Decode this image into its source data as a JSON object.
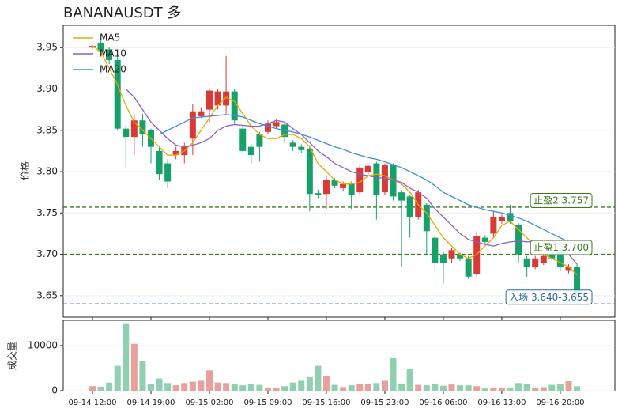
{
  "chart_data": [
    {
      "type": "candlestick",
      "title": "BANANAUSDT  多",
      "ylabel": "价格",
      "ylim": [
        3.624,
        3.977
      ],
      "yticks": [
        3.65,
        {
          "value": 3.7,
          "label": "3.70"
        },
        3.75,
        {
          "value": 3.8,
          "label": "3.80"
        },
        3.85,
        {
          "value": 3.9,
          "label": "3.90"
        },
        3.95
      ],
      "grid": true,
      "legend": "upper left",
      "up_color": "#d93a35",
      "down_color": "#16a06a",
      "open": [
        3.95,
        3.955,
        3.948,
        3.935,
        3.852,
        3.842,
        3.862,
        3.85,
        3.825,
        3.81,
        3.82,
        3.82,
        3.84,
        3.867,
        3.875,
        3.88,
        3.88,
        3.897,
        3.852,
        3.83,
        3.845,
        3.848,
        3.855,
        3.857,
        3.835,
        3.83,
        3.828,
        3.774,
        3.773,
        3.79,
        3.78,
        3.785,
        3.775,
        3.8,
        3.81,
        3.775,
        3.808,
        3.775,
        3.77,
        3.745,
        3.76,
        3.72,
        3.7,
        3.695,
        3.7,
        3.695,
        3.676,
        3.72,
        3.725,
        3.74,
        3.75,
        3.735,
        3.695,
        3.685,
        3.69,
        3.7,
        3.705,
        3.68,
        3.685
      ],
      "high": [
        3.953,
        3.958,
        3.95,
        3.94,
        3.856,
        3.868,
        3.87,
        3.852,
        3.83,
        3.815,
        3.83,
        3.835,
        3.882,
        3.878,
        3.9,
        3.9,
        3.94,
        3.9,
        3.856,
        3.833,
        3.848,
        3.862,
        3.863,
        3.86,
        3.838,
        3.833,
        3.832,
        3.778,
        3.795,
        3.792,
        3.788,
        3.788,
        3.808,
        3.81,
        3.812,
        3.81,
        3.81,
        3.778,
        3.772,
        3.778,
        3.762,
        3.722,
        3.703,
        3.708,
        3.702,
        3.698,
        3.728,
        3.723,
        3.752,
        3.748,
        3.76,
        3.738,
        3.698,
        3.698,
        3.7,
        3.703,
        3.708,
        3.688,
        3.688
      ],
      "low": [
        3.949,
        3.94,
        3.93,
        3.85,
        3.805,
        3.82,
        3.83,
        3.81,
        3.79,
        3.78,
        3.815,
        3.81,
        3.82,
        3.865,
        3.86,
        3.875,
        3.87,
        3.858,
        3.822,
        3.81,
        3.812,
        3.845,
        3.852,
        3.835,
        3.825,
        3.822,
        3.752,
        3.768,
        3.755,
        3.78,
        3.776,
        3.755,
        3.772,
        3.797,
        3.742,
        3.772,
        3.765,
        3.685,
        3.72,
        3.742,
        3.7,
        3.678,
        3.665,
        3.69,
        3.692,
        3.67,
        3.673,
        3.712,
        3.72,
        3.737,
        3.737,
        3.69,
        3.673,
        3.682,
        3.687,
        3.692,
        3.68,
        3.677,
        3.64
      ],
      "close": [
        3.952,
        3.945,
        3.935,
        3.852,
        3.842,
        3.862,
        3.845,
        3.83,
        3.797,
        3.788,
        3.825,
        3.83,
        3.873,
        3.873,
        3.898,
        3.897,
        3.897,
        3.862,
        3.825,
        3.82,
        3.83,
        3.858,
        3.86,
        3.842,
        3.83,
        3.826,
        3.773,
        3.772,
        3.79,
        3.783,
        3.785,
        3.772,
        3.805,
        3.807,
        3.772,
        3.808,
        3.77,
        3.765,
        3.745,
        3.775,
        3.728,
        3.69,
        3.69,
        3.705,
        3.695,
        3.673,
        3.722,
        3.715,
        3.745,
        3.745,
        3.74,
        3.7,
        3.685,
        3.695,
        3.698,
        3.695,
        3.685,
        3.685,
        3.647
      ],
      "series": [
        {
          "name": "MA5",
          "color": "#e8a800",
          "values": [
            3.952,
            3.945,
            3.925,
            3.905,
            3.88,
            3.86,
            3.85,
            3.84,
            3.83,
            3.82,
            3.82,
            3.825,
            3.835,
            3.85,
            3.865,
            3.88,
            3.89,
            3.885,
            3.87,
            3.855,
            3.845,
            3.84,
            3.84,
            3.845,
            3.845,
            3.84,
            3.83,
            3.81,
            3.8,
            3.79,
            3.785,
            3.785,
            3.787,
            3.795,
            3.797,
            3.795,
            3.79,
            3.785,
            3.775,
            3.76,
            3.75,
            3.735,
            3.72,
            3.71,
            3.7,
            3.695,
            3.7,
            3.71,
            3.72,
            3.735,
            3.74,
            3.73,
            3.72,
            3.71,
            3.7,
            3.695,
            3.69,
            3.685,
            3.675
          ]
        },
        {
          "name": "MA10",
          "color": "#8c5fc8",
          "values": [
            null,
            null,
            null,
            null,
            3.9,
            3.89,
            3.875,
            3.86,
            3.85,
            3.84,
            3.832,
            3.83,
            3.832,
            3.835,
            3.84,
            3.85,
            3.855,
            3.857,
            3.856,
            3.855,
            3.855,
            3.858,
            3.862,
            3.86,
            3.852,
            3.845,
            3.835,
            3.825,
            3.818,
            3.81,
            3.805,
            3.8,
            3.797,
            3.795,
            3.793,
            3.792,
            3.79,
            3.787,
            3.78,
            3.775,
            3.768,
            3.755,
            3.745,
            3.735,
            3.725,
            3.718,
            3.715,
            3.712,
            3.71,
            3.713,
            3.715,
            3.716,
            3.715,
            3.716,
            3.717,
            3.716,
            3.712,
            3.7,
            3.688
          ]
        },
        {
          "name": "MA20",
          "color": "#3a8fd8",
          "values": [
            null,
            null,
            null,
            null,
            null,
            null,
            null,
            null,
            3.845,
            3.85,
            3.855,
            3.86,
            3.865,
            3.866,
            3.867,
            3.868,
            3.869,
            3.868,
            3.866,
            3.862,
            3.858,
            3.855,
            3.852,
            3.85,
            3.848,
            3.845,
            3.842,
            3.838,
            3.834,
            3.83,
            3.827,
            3.823,
            3.82,
            3.817,
            3.815,
            3.812,
            3.808,
            3.805,
            3.8,
            3.795,
            3.79,
            3.783,
            3.775,
            3.77,
            3.765,
            3.76,
            3.757,
            3.754,
            3.752,
            3.75,
            3.747,
            3.744,
            3.74,
            3.735,
            3.73,
            3.725,
            3.72,
            3.715,
            3.71
          ]
        }
      ],
      "hlines": [
        {
          "label": "止盈2 3.757",
          "value": 3.757,
          "color": "#3d7a1f"
        },
        {
          "label": "止盈1 3.700",
          "value": 3.7,
          "color": "#3d7a1f"
        },
        {
          "label": "入场 3.640-3.655",
          "value": 3.64,
          "color": "#2d6aa0"
        }
      ]
    },
    {
      "type": "bar",
      "ylabel": "成交量",
      "ylim": [
        0,
        15600
      ],
      "yticks": [
        0,
        10000
      ],
      "up_color": "#e8a09d",
      "down_color": "#8fd0b0",
      "categories": [
        "09-14 12:00",
        null,
        null,
        null,
        null,
        null,
        null,
        "09-14 19:00",
        null,
        null,
        null,
        null,
        null,
        null,
        "09-15 02:00",
        null,
        null,
        null,
        null,
        null,
        null,
        "09-15 09:00",
        null,
        null,
        null,
        null,
        null,
        null,
        "09-15 16:00",
        null,
        null,
        null,
        null,
        null,
        null,
        "09-15 23:00",
        null,
        null,
        null,
        null,
        null,
        null,
        "09-16 06:00",
        null,
        null,
        null,
        null,
        null,
        null,
        "09-16 13:00",
        null,
        null,
        null,
        null,
        null,
        null,
        "09-16 20:00",
        null,
        null
      ],
      "values": [
        1000,
        900,
        1800,
        5500,
        14800,
        10400,
        6500,
        1500,
        2700,
        1700,
        1200,
        1700,
        2000,
        2200,
        4500,
        1800,
        1700,
        1500,
        1200,
        1400,
        1300,
        700,
        600,
        1000,
        1800,
        2200,
        3000,
        5500,
        3200,
        1300,
        800,
        1200,
        1400,
        1500,
        1700,
        2200,
        7200,
        1600,
        4800,
        1300,
        1200,
        1400,
        1100,
        1400,
        1200,
        1200,
        1000,
        500,
        600,
        700,
        600,
        1700,
        1500,
        600,
        800,
        1300,
        1500,
        2100,
        1000
      ]
    }
  ]
}
